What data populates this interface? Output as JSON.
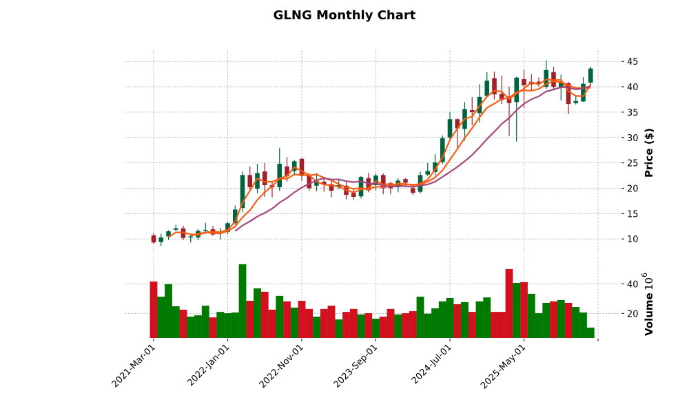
{
  "chart_data": {
    "type": "candlestick",
    "title": "GLNG Monthly Chart",
    "ylabel": "Price ($)",
    "volume_label": "Volume",
    "volume_exponent_base": "10",
    "volume_exponent": "6",
    "ylim": [
      6.9,
      47.2
    ],
    "yticks": [
      10,
      15,
      20,
      25,
      30,
      35,
      40,
      45
    ],
    "volume_ylim": [
      3.4,
      57.8
    ],
    "volume_yticks": [
      20,
      40
    ],
    "xtick_labels": [
      "2021-Mar-01",
      "2022-Jan-01",
      "2022-Nov-01",
      "2023-Sep-01",
      "2024-Jul-01",
      "2025-May-01"
    ],
    "xtick_indices": [
      0,
      10,
      20,
      30,
      40,
      50,
      60
    ],
    "grid": true,
    "moving_averages": [
      {
        "period": 3,
        "color": "#f35c13"
      },
      {
        "period": 6,
        "color": "#f35c13"
      },
      {
        "period": 12,
        "color": "#a0457a"
      }
    ],
    "colors": {
      "up": "#006340",
      "down": "#a02128",
      "vol_up": "#007a00",
      "vol_down": "#d3111e"
    },
    "ohlc": [
      [
        10.7,
        11.2,
        9.0,
        9.3
      ],
      [
        9.4,
        11.0,
        8.6,
        10.3
      ],
      [
        10.5,
        11.7,
        9.8,
        11.5
      ],
      [
        11.8,
        12.8,
        11.5,
        12.1
      ],
      [
        12.1,
        12.6,
        9.8,
        10.2
      ],
      [
        10.3,
        11.0,
        9.3,
        10.5
      ],
      [
        10.3,
        12.0,
        9.8,
        11.6
      ],
      [
        11.6,
        13.2,
        11.0,
        11.8
      ],
      [
        11.9,
        12.6,
        10.6,
        10.9
      ],
      [
        11.2,
        12.2,
        9.9,
        11.4
      ],
      [
        11.4,
        13.3,
        11.0,
        13.1
      ],
      [
        13.1,
        16.6,
        12.8,
        15.8
      ],
      [
        16.1,
        23.3,
        15.3,
        22.6
      ],
      [
        22.6,
        24.3,
        19.8,
        20.2
      ],
      [
        19.9,
        24.8,
        19.0,
        23.0
      ],
      [
        23.3,
        25.0,
        18.3,
        20.6
      ],
      [
        20.6,
        21.4,
        18.2,
        20.2
      ],
      [
        20.2,
        27.9,
        19.5,
        24.8
      ],
      [
        24.3,
        26.1,
        21.3,
        22.4
      ],
      [
        23.4,
        25.6,
        22.5,
        25.3
      ],
      [
        25.8,
        26.0,
        21.5,
        22.4
      ],
      [
        22.6,
        23.0,
        19.5,
        20.0
      ],
      [
        20.5,
        23.0,
        19.4,
        21.4
      ],
      [
        21.3,
        22.0,
        19.3,
        20.8
      ],
      [
        20.8,
        21.4,
        18.2,
        19.5
      ],
      [
        20.2,
        21.7,
        19.8,
        20.6
      ],
      [
        20.5,
        21.2,
        17.8,
        18.7
      ],
      [
        19.1,
        19.8,
        17.7,
        18.3
      ],
      [
        18.4,
        22.4,
        18.0,
        22.2
      ],
      [
        22.0,
        23.0,
        19.2,
        19.6
      ],
      [
        20.6,
        22.9,
        19.6,
        22.5
      ],
      [
        22.6,
        22.9,
        18.8,
        20.0
      ],
      [
        21.0,
        21.3,
        18.8,
        20.0
      ],
      [
        20.2,
        22.0,
        19.2,
        21.5
      ],
      [
        21.8,
        22.0,
        20.2,
        21.1
      ],
      [
        20.0,
        20.8,
        18.7,
        19.1
      ],
      [
        19.3,
        23.3,
        19.0,
        22.6
      ],
      [
        22.7,
        25.0,
        22.4,
        23.4
      ],
      [
        23.2,
        26.7,
        22.5,
        25.1
      ],
      [
        25.2,
        30.4,
        24.8,
        29.9
      ],
      [
        30.0,
        35.0,
        29.4,
        33.6
      ],
      [
        33.6,
        33.8,
        27.6,
        31.8
      ],
      [
        31.7,
        37.0,
        29.4,
        35.6
      ],
      [
        35.4,
        38.0,
        32.4,
        35.0
      ],
      [
        34.8,
        40.5,
        33.0,
        38.0
      ],
      [
        38.2,
        42.9,
        38.0,
        41.2
      ],
      [
        41.7,
        43.0,
        37.5,
        38.5
      ],
      [
        38.6,
        42.2,
        36.6,
        37.4
      ],
      [
        38.1,
        40.0,
        30.3,
        36.8
      ],
      [
        37.0,
        42.0,
        29.2,
        41.8
      ],
      [
        41.5,
        43.4,
        35.8,
        40.3
      ],
      [
        41.0,
        42.5,
        39.3,
        40.5
      ],
      [
        41.0,
        41.8,
        40.1,
        40.6
      ],
      [
        40.0,
        45.2,
        39.6,
        43.3
      ],
      [
        42.9,
        43.9,
        39.4,
        40.0
      ],
      [
        39.8,
        42.4,
        37.3,
        40.8
      ],
      [
        40.7,
        41.0,
        34.6,
        36.6
      ],
      [
        36.8,
        38.4,
        36.5,
        37.2
      ],
      [
        37.1,
        41.9,
        37.0,
        40.6
      ],
      [
        40.8,
        44.0,
        40.3,
        43.6
      ]
    ],
    "volume": [
      41.5,
      31.3,
      39.7,
      24.8,
      22.5,
      17.8,
      18.7,
      25.2,
      17.3,
      21.0,
      20.1,
      20.6,
      53.2,
      28.5,
      36.9,
      34.6,
      22.5,
      31.8,
      28.1,
      23.9,
      28.5,
      23.0,
      17.8,
      23.0,
      25.2,
      15.9,
      21.0,
      23.0,
      19.3,
      20.1,
      16.4,
      17.8,
      23.0,
      19.3,
      20.1,
      21.5,
      31.3,
      19.8,
      23.4,
      28.1,
      30.4,
      26.2,
      27.6,
      21.0,
      28.1,
      30.8,
      21.0,
      21.0,
      49.9,
      40.6,
      41.1,
      33.2,
      20.1,
      27.1,
      28.1,
      29.0,
      27.1,
      24.3,
      20.6,
      10.4
    ],
    "volume_up": [
      0,
      1,
      1,
      1,
      0,
      1,
      1,
      1,
      0,
      1,
      1,
      1,
      1,
      0,
      1,
      0,
      0,
      1,
      0,
      1,
      0,
      0,
      1,
      0,
      0,
      1,
      0,
      0,
      1,
      0,
      1,
      0,
      0,
      1,
      0,
      0,
      1,
      1,
      1,
      1,
      1,
      0,
      1,
      0,
      1,
      1,
      0,
      0,
      0,
      1,
      0,
      1,
      1,
      1,
      0,
      1,
      0,
      1,
      1,
      1
    ]
  }
}
